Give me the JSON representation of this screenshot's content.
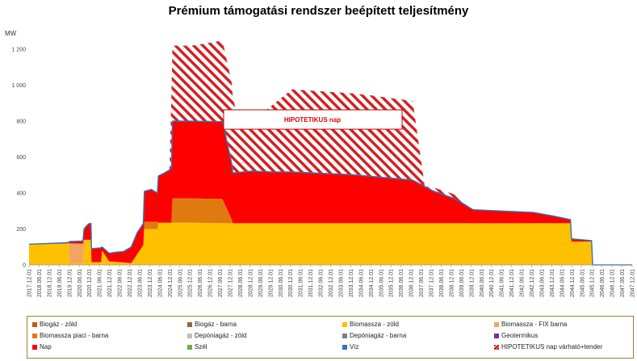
{
  "chart_data": {
    "type": "area",
    "title": "Prémium támogatási rendszer beépített teljesítmény",
    "ylabel": "MW",
    "ylim": [
      0,
      1200
    ],
    "yticks": [
      0,
      200,
      400,
      600,
      800,
      1000,
      1200
    ],
    "ytick_labels": [
      "0",
      "200",
      "400",
      "600",
      "800",
      "1 000",
      "1 200"
    ],
    "xlim": [
      2017.917,
      2047.917
    ],
    "xticks": [
      "2017.12.01",
      "2018.06.01",
      "2018.12.01",
      "2019.06.01",
      "2019.12.01",
      "2020.06.01",
      "2020.12.01",
      "2021.06.01",
      "2021.12.01",
      "2022.06.01",
      "2022.12.01",
      "2023.06.01",
      "2023.12.01",
      "2024.06.01",
      "2024.12.01",
      "2025.06.01",
      "2025.12.01",
      "2026.06.01",
      "2026.12.01",
      "2027.06.01",
      "2027.12.01",
      "2028.06.01",
      "2028.12.01",
      "2029.06.01",
      "2029.12.01",
      "2030.06.01",
      "2030.12.01",
      "2031.06.01",
      "2031.12.01",
      "2032.06.01",
      "2032.12.01",
      "2033.06.01",
      "2033.12.01",
      "2034.06.01",
      "2034.12.01",
      "2035.06.01",
      "2035.12.01",
      "2036.06.01",
      "2036.12.01",
      "2037.06.01",
      "2037.12.01",
      "2038.06.01",
      "2038.12.01",
      "2039.06.01",
      "2039.12.01",
      "2040.06.01",
      "2040.12.01",
      "2041.06.01",
      "2041.12.01",
      "2042.06.01",
      "2042.12.01",
      "2043.06.01",
      "2043.12.01",
      "2044.06.01",
      "2044.12.01",
      "2045.06.01",
      "2045.12.01",
      "2046.06.01",
      "2046.12.01",
      "2047.06.01",
      "2047.12.01"
    ],
    "annotation": "HIPOTETIKUS nap",
    "legend_position": "bottom",
    "grid": false,
    "series": [
      {
        "name": "Biogáz - zöld",
        "color": "#c55a11",
        "x": [],
        "y": []
      },
      {
        "name": "Biogáz - barna",
        "color": "#996633",
        "x": [],
        "y": []
      },
      {
        "name": "Biomassza - zöld",
        "color": "#ffc000",
        "x": [
          2017.917,
          2019.5,
          2019.9,
          2019.92,
          2020.6,
          2020.65,
          2020.9,
          2021.0,
          2021.02,
          2021.5,
          2021.55,
          2021.9,
          2023.0,
          2023.3,
          2023.6,
          2023.65,
          2024.3,
          2024.35,
          2025.0,
          2025.05,
          2026.0,
          2027.0,
          2028.0,
          2029.0,
          2030.0,
          2031.0,
          2032.0,
          2033.0,
          2034.0,
          2035.0,
          2036.0,
          2037.0,
          2038.0,
          2039.0,
          2040.0,
          2041.0,
          2042.0,
          2043.0,
          2044.0,
          2044.85,
          2044.9,
          2045.9,
          2045.95,
          2046.0
        ],
        "y": [
          115,
          118,
          120,
          10,
          8,
          140,
          140,
          140,
          15,
          15,
          80,
          20,
          10,
          60,
          110,
          200,
          200,
          235,
          235,
          235,
          235,
          233,
          232,
          232,
          232,
          232,
          232,
          232,
          232,
          232,
          232,
          232,
          232,
          232,
          232,
          232,
          232,
          232,
          232,
          232,
          130,
          130,
          5,
          0
        ]
      },
      {
        "name": "Biomassza - FIX barna",
        "color": "#f4a460",
        "x": [
          2017.917,
          2019.9,
          2019.92,
          2020.6,
          2020.65,
          2021.0,
          2021.02,
          2046.0
        ],
        "y": [
          0,
          0,
          110,
          110,
          0,
          0,
          0,
          0
        ]
      },
      {
        "name": "Biomassza piaci - barna",
        "color": "#e07a10",
        "x": [
          2017.917,
          2023.6,
          2023.65,
          2024.3,
          2024.35,
          2025.0,
          2025.05,
          2027.5,
          2027.55,
          2028.0,
          2028.05,
          2046.0
        ],
        "y": [
          0,
          0,
          40,
          40,
          0,
          0,
          135,
          135,
          130,
          20,
          0,
          0
        ]
      },
      {
        "name": "Depóniagáz - zöld",
        "color": "#bfbfbf",
        "x": [],
        "y": []
      },
      {
        "name": "Depóniagáz - barna",
        "color": "#7f7f7f",
        "x": [],
        "y": []
      },
      {
        "name": "Geotermikus",
        "color": "#7030a0",
        "x": [],
        "y": []
      },
      {
        "name": "Nap",
        "color": "#ff0000",
        "x": [
          2017.917,
          2019.9,
          2019.92,
          2020.6,
          2020.65,
          2020.8,
          2020.9,
          2021.0,
          2021.02,
          2021.5,
          2021.55,
          2021.9,
          2022.3,
          2022.6,
          2023.0,
          2023.3,
          2023.6,
          2023.65,
          2024.0,
          2024.3,
          2024.35,
          2024.7,
          2025.0,
          2025.05,
          2026.0,
          2027.0,
          2027.5,
          2027.55,
          2028.0,
          2028.05,
          2029.0,
          2030.0,
          2031.0,
          2032.0,
          2033.0,
          2034.0,
          2035.0,
          2036.0,
          2037.0,
          2037.5,
          2038.0,
          2039.0,
          2039.5,
          2040.0,
          2041.0,
          2042.0,
          2043.0,
          2044.0,
          2044.85,
          2044.9,
          2045.9,
          2045.95,
          2046.0
        ],
        "y": [
          0,
          5,
          10,
          15,
          60,
          80,
          90,
          90,
          75,
          80,
          20,
          45,
          55,
          60,
          90,
          120,
          120,
          170,
          180,
          160,
          260,
          280,
          300,
          430,
          430,
          430,
          430,
          430,
          310,
          280,
          290,
          285,
          285,
          280,
          275,
          270,
          260,
          250,
          240,
          210,
          180,
          140,
          110,
          75,
          70,
          65,
          60,
          40,
          20,
          15,
          5,
          0,
          0
        ]
      },
      {
        "name": "Szél",
        "color": "#70ad47",
        "x": [],
        "y": []
      },
      {
        "name": "Víz",
        "color": "#2e75b6",
        "x": [],
        "y": []
      },
      {
        "name": "HIPOTETIKUS nap várható+tender",
        "color": "#c00000",
        "x": [
          2024.9,
          2025.0,
          2026.0,
          2027.0,
          2027.5,
          2027.55,
          2028.0,
          2028.3,
          2029.0,
          2031.0,
          2033.0,
          2035.0,
          2036.0,
          2037.0,
          2037.6,
          2038.0,
          2039.5,
          2040.0,
          2046.0
        ],
        "y": [
          0,
          420,
          420,
          440,
          450,
          450,
          450,
          300,
          280,
          460,
          455,
          450,
          445,
          440,
          0,
          20,
          25,
          0,
          0
        ]
      }
    ]
  }
}
